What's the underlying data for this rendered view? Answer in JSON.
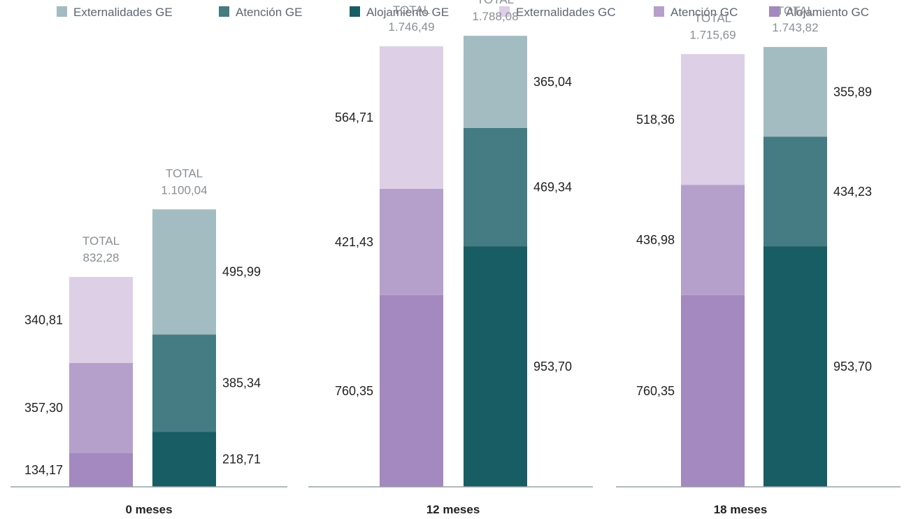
{
  "legend": [
    {
      "label": "Externalidades GE",
      "color": "#a3bcc1"
    },
    {
      "label": "Atención GE",
      "color": "#457b82"
    },
    {
      "label": "Alojamiento GE",
      "color": "#195d64"
    },
    {
      "label": "Externalidades GC",
      "color": "#dccfe6"
    },
    {
      "label": "Atención GC",
      "color": "#b59fcb"
    },
    {
      "label": "Alojamiento GC",
      "color": "#a389bf"
    }
  ],
  "total_prefix": "TOTAL",
  "chart_data": {
    "type": "bar",
    "stacked": true,
    "ylim": [
      0,
      1930
    ],
    "groups": [
      {
        "label": "0 meses",
        "bars": [
          {
            "scenario": "GC",
            "total": "832,28",
            "segments": [
              {
                "series": "Alojamiento GC",
                "value": 134.17,
                "label": "134,17"
              },
              {
                "series": "Atención GC",
                "value": 357.3,
                "label": "357,30"
              },
              {
                "series": "Externalidades GC",
                "value": 340.81,
                "label": "340,81"
              }
            ]
          },
          {
            "scenario": "GE",
            "total": "1.100,04",
            "segments": [
              {
                "series": "Alojamiento GE",
                "value": 218.71,
                "label": "218,71"
              },
              {
                "series": "Atención GE",
                "value": 385.34,
                "label": "385,34"
              },
              {
                "series": "Externalidades GE",
                "value": 495.99,
                "label": "495,99"
              }
            ]
          }
        ]
      },
      {
        "label": "12 meses",
        "bars": [
          {
            "scenario": "GC",
            "total": "1.746,49",
            "segments": [
              {
                "series": "Alojamiento GC",
                "value": 760.35,
                "label": "760,35"
              },
              {
                "series": "Atención GC",
                "value": 421.43,
                "label": "421,43"
              },
              {
                "series": "Externalidades GC",
                "value": 564.71,
                "label": "564,71"
              }
            ]
          },
          {
            "scenario": "GE",
            "total": "1.788,08",
            "segments": [
              {
                "series": "Alojamiento GE",
                "value": 953.7,
                "label": "953,70"
              },
              {
                "series": "Atención GE",
                "value": 469.34,
                "label": "469,34"
              },
              {
                "series": "Externalidades GE",
                "value": 365.04,
                "label": "365,04"
              }
            ]
          }
        ]
      },
      {
        "label": "18 meses",
        "bars": [
          {
            "scenario": "GC",
            "total": "1.715,69",
            "segments": [
              {
                "series": "Alojamiento GC",
                "value": 760.35,
                "label": "760,35"
              },
              {
                "series": "Atención GC",
                "value": 436.98,
                "label": "436,98"
              },
              {
                "series": "Externalidades GC",
                "value": 518.36,
                "label": "518,36"
              }
            ]
          },
          {
            "scenario": "GE",
            "total": "1.743,82",
            "segments": [
              {
                "series": "Alojamiento GE",
                "value": 953.7,
                "label": "953,70"
              },
              {
                "series": "Atención GE",
                "value": 434.23,
                "label": "434,23"
              },
              {
                "series": "Externalidades GE",
                "value": 355.89,
                "label": "355,89"
              }
            ]
          }
        ]
      }
    ]
  }
}
